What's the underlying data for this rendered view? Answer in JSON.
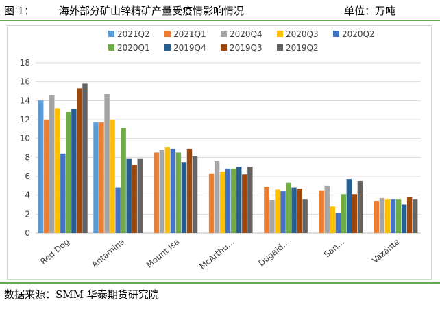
{
  "header": {
    "figure_label": "图 1：",
    "title": "海外部分矿山锌精矿产量受疫情影响情况",
    "unit": "单位：万吨"
  },
  "footer": {
    "source": "数据来源：SMM 华泰期货研究院"
  },
  "chart_data": {
    "type": "bar",
    "title": "",
    "xlabel": "",
    "ylabel": "",
    "ylim": [
      0,
      18
    ],
    "yticks": [
      0,
      2,
      4,
      6,
      8,
      10,
      12,
      14,
      16,
      18
    ],
    "grid": true,
    "legend_position": "top",
    "categories": [
      "Red Dog",
      "Antamina",
      "Mount Isa",
      "McArthu…",
      "Dugald…",
      "San…",
      "Vazante"
    ],
    "series": [
      {
        "name": "2021Q2",
        "color": "#5b9bd5",
        "values": [
          14.0,
          11.7,
          null,
          null,
          null,
          null,
          null
        ]
      },
      {
        "name": "2021Q1",
        "color": "#ed7d31",
        "values": [
          12.0,
          11.7,
          8.5,
          6.3,
          4.9,
          4.5,
          3.4
        ]
      },
      {
        "name": "2020Q4",
        "color": "#a5a5a5",
        "values": [
          14.6,
          14.7,
          8.8,
          7.6,
          3.5,
          5.0,
          3.7
        ]
      },
      {
        "name": "2020Q3",
        "color": "#ffc000",
        "values": [
          13.2,
          12.0,
          9.1,
          6.5,
          4.6,
          2.8,
          3.6
        ]
      },
      {
        "name": "2020Q2",
        "color": "#4472c4",
        "values": [
          8.4,
          4.8,
          8.9,
          6.8,
          4.4,
          2.1,
          3.6
        ]
      },
      {
        "name": "2020Q1",
        "color": "#70ad47",
        "values": [
          12.8,
          11.1,
          8.5,
          6.8,
          5.3,
          4.1,
          3.6
        ]
      },
      {
        "name": "2019Q4",
        "color": "#255e91",
        "values": [
          13.1,
          7.9,
          7.5,
          7.0,
          4.8,
          5.7,
          3.0
        ]
      },
      {
        "name": "2019Q3",
        "color": "#9e480e",
        "values": [
          15.3,
          7.2,
          8.9,
          6.2,
          4.7,
          4.1,
          3.8
        ]
      },
      {
        "name": "2019Q2",
        "color": "#636363",
        "values": [
          15.8,
          7.9,
          8.1,
          7.0,
          3.6,
          5.5,
          3.6
        ]
      }
    ]
  }
}
